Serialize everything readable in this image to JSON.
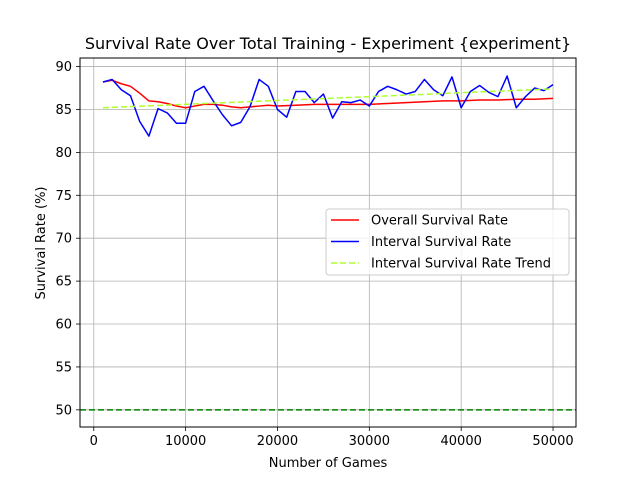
{
  "chart_data": {
    "type": "line",
    "title": "Survival Rate Over Total Training - Experiment {experiment}",
    "xlabel": "Number of Games",
    "ylabel": "Survival Rate (%)",
    "xlim": [
      -1500,
      52500
    ],
    "ylim": [
      48,
      91
    ],
    "grid": true,
    "legend_position": "center-right",
    "xticks": [
      0,
      10000,
      20000,
      30000,
      40000,
      50000
    ],
    "xtick_labels": [
      "0",
      "10000",
      "20000",
      "30000",
      "40000",
      "50000"
    ],
    "yticks": [
      50,
      55,
      60,
      65,
      70,
      75,
      80,
      85,
      90
    ],
    "ytick_labels": [
      "50",
      "55",
      "60",
      "65",
      "70",
      "75",
      "80",
      "85",
      "90"
    ],
    "reference_line": {
      "y": 50,
      "color": "#008000",
      "style": "dashed"
    },
    "series": [
      {
        "name": "Overall Survival Rate",
        "color": "#ff0000",
        "style": "solid",
        "x": [
          1000,
          2000,
          3000,
          4000,
          5000,
          6000,
          7000,
          8000,
          9000,
          10000,
          11000,
          12000,
          13000,
          14000,
          15000,
          16000,
          17000,
          18000,
          19000,
          20000,
          22000,
          24000,
          26000,
          28000,
          30000,
          32000,
          34000,
          36000,
          38000,
          40000,
          42000,
          44000,
          46000,
          48000,
          50000
        ],
        "values": [
          88.2,
          88.4,
          88.0,
          87.7,
          86.9,
          86.0,
          85.9,
          85.7,
          85.4,
          85.2,
          85.4,
          85.6,
          85.6,
          85.5,
          85.3,
          85.2,
          85.3,
          85.4,
          85.5,
          85.4,
          85.5,
          85.6,
          85.6,
          85.6,
          85.6,
          85.7,
          85.8,
          85.9,
          86.0,
          86.0,
          86.1,
          86.1,
          86.2,
          86.2,
          86.3
        ]
      },
      {
        "name": "Interval Survival Rate",
        "color": "#0000ff",
        "style": "solid",
        "x": [
          1000,
          2000,
          3000,
          4000,
          5000,
          6000,
          7000,
          8000,
          9000,
          10000,
          11000,
          12000,
          13000,
          14000,
          15000,
          16000,
          17000,
          18000,
          19000,
          20000,
          21000,
          22000,
          23000,
          24000,
          25000,
          26000,
          27000,
          28000,
          29000,
          30000,
          31000,
          32000,
          33000,
          34000,
          35000,
          36000,
          37000,
          38000,
          39000,
          40000,
          41000,
          42000,
          43000,
          44000,
          45000,
          46000,
          47000,
          48000,
          49000,
          50000
        ],
        "values": [
          88.2,
          88.5,
          87.3,
          86.6,
          83.6,
          81.9,
          85.1,
          84.6,
          83.4,
          83.4,
          87.1,
          87.7,
          86.0,
          84.4,
          83.1,
          83.5,
          85.3,
          88.5,
          87.7,
          85.0,
          84.1,
          87.1,
          87.1,
          85.8,
          86.8,
          84.0,
          85.9,
          85.8,
          86.1,
          85.4,
          87.1,
          87.7,
          87.3,
          86.8,
          87.1,
          88.5,
          87.3,
          86.6,
          88.8,
          85.2,
          87.1,
          87.8,
          87.0,
          86.5,
          88.9,
          85.2,
          86.5,
          87.5,
          87.2,
          87.9
        ]
      },
      {
        "name": "Interval Survival Rate Trend",
        "color": "#adff2f",
        "style": "dashed",
        "x": [
          1000,
          50000
        ],
        "values": [
          85.2,
          87.4
        ]
      }
    ]
  }
}
